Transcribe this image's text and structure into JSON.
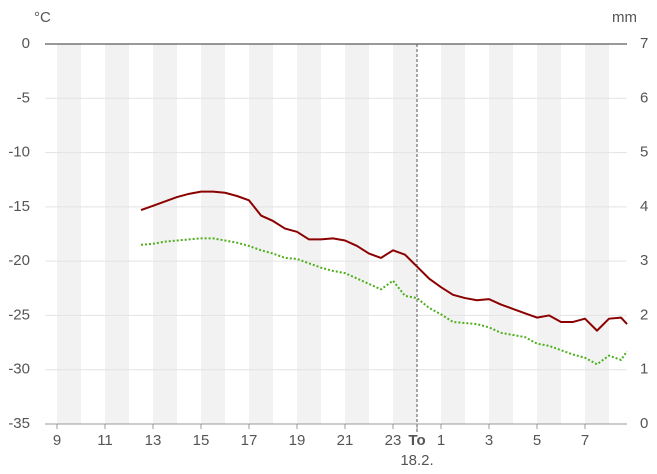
{
  "chart_data": {
    "type": "line",
    "y_label": "°C",
    "y2_label": "mm",
    "x": [
      12.5,
      13,
      13.5,
      14,
      14.5,
      15,
      15.5,
      16,
      16.5,
      17,
      17.5,
      18,
      18.5,
      19,
      19.5,
      20,
      20.5,
      21,
      21.5,
      22,
      22.5,
      23,
      23.5,
      24,
      24.5,
      25,
      25.5,
      26,
      26.5,
      27,
      27.5,
      28,
      28.5,
      29,
      29.5,
      30,
      30.5,
      31,
      31.5,
      32,
      32.5,
      32.75
    ],
    "series": [
      {
        "color": "#8b0000",
        "style": "solid",
        "values": [
          -15.3,
          -14.9,
          -14.5,
          -14.1,
          -13.8,
          -13.6,
          -13.6,
          -13.7,
          -14.0,
          -14.4,
          -15.8,
          -16.3,
          -17.0,
          -17.3,
          -18.0,
          -18.0,
          -17.9,
          -18.1,
          -18.6,
          -19.3,
          -19.7,
          -19.0,
          -19.4,
          -20.5,
          -21.6,
          -22.4,
          -23.1,
          -23.4,
          -23.6,
          -23.5,
          -24.0,
          -24.4,
          -24.8,
          -25.2,
          -25.0,
          -25.6,
          -25.6,
          -25.3,
          -26.4,
          -25.3,
          -25.2,
          -25.8
        ]
      },
      {
        "color": "#4caf1a",
        "style": "dotted",
        "values": [
          -18.5,
          -18.4,
          -18.2,
          -18.1,
          -18.0,
          -17.9,
          -17.9,
          -18.1,
          -18.3,
          -18.6,
          -19.0,
          -19.3,
          -19.7,
          -19.8,
          -20.2,
          -20.6,
          -20.9,
          -21.1,
          -21.6,
          -22.1,
          -22.6,
          -21.8,
          -23.2,
          -23.4,
          -24.3,
          -24.9,
          -25.6,
          -25.7,
          -25.8,
          -26.1,
          -26.6,
          -26.8,
          -27.0,
          -27.6,
          -27.8,
          -28.2,
          -28.6,
          -28.9,
          -29.5,
          -28.7,
          -29.1,
          -28.3
        ]
      }
    ],
    "xlim": [
      8.5,
      32.75
    ],
    "xticks": [
      9,
      11,
      13,
      15,
      17,
      19,
      21,
      23,
      {
        "value": 24,
        "label": "To"
      },
      {
        "value": 25,
        "label": "1"
      },
      {
        "value": 27,
        "label": "3"
      },
      {
        "value": 29,
        "label": "5"
      },
      {
        "value": 31,
        "label": "7"
      }
    ],
    "today_x": 24,
    "today_label": "18.2.",
    "ylim": [
      -35,
      0
    ],
    "yticks": [
      -35,
      -30,
      -25,
      -20,
      -15,
      -10,
      -5,
      0
    ],
    "y2lim": [
      0,
      7
    ],
    "y2ticks": [
      0,
      1,
      2,
      3,
      4,
      5,
      6,
      7
    ],
    "grid": true
  }
}
